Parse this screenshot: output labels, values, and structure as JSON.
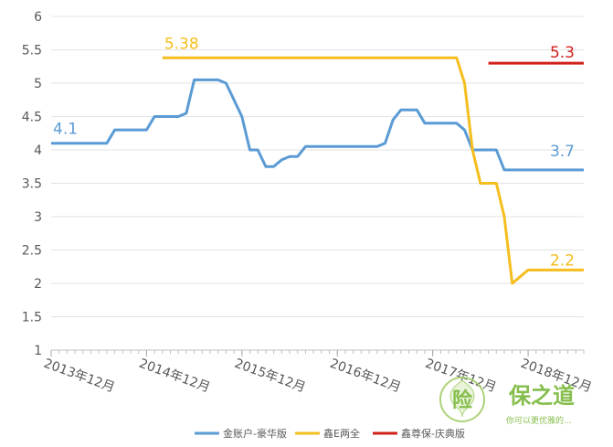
{
  "chart_data": {
    "type": "line",
    "title": "",
    "xlabel": "",
    "ylabel": "",
    "ylim": [
      1,
      6
    ],
    "yticks": [
      1,
      1.5,
      2,
      2.5,
      3,
      3.5,
      4,
      4.5,
      5,
      5.5,
      6
    ],
    "ytick_labels": [
      "1",
      "1.5",
      "2",
      "2.5",
      "3",
      "3.5",
      "4",
      "4.5",
      "5",
      "5.5",
      "6"
    ],
    "xlim": [
      "2013-12",
      "2019-07"
    ],
    "xticks": [
      "2013-12",
      "2014-12",
      "2015-12",
      "2016-12",
      "2017-12",
      "2018-12"
    ],
    "xtick_labels": [
      "2013年12月",
      "2014年12月",
      "2015年12月",
      "2016年12月",
      "2017年12月",
      "2018年12月"
    ],
    "grid": "horizontal",
    "legend_position": "bottom",
    "series": [
      {
        "name": "金账户-豪华版",
        "color": "#5b9bd5",
        "points": [
          [
            "2013-12",
            4.1
          ],
          [
            "2014-07",
            4.1
          ],
          [
            "2014-08",
            4.3
          ],
          [
            "2014-12",
            4.3
          ],
          [
            "2015-01",
            4.5
          ],
          [
            "2015-04",
            4.5
          ],
          [
            "2015-05",
            4.55
          ],
          [
            "2015-06",
            5.05
          ],
          [
            "2015-09",
            5.05
          ],
          [
            "2015-10",
            5.0
          ],
          [
            "2015-12",
            4.5
          ],
          [
            "2016-01",
            4.0
          ],
          [
            "2016-02",
            4.0
          ],
          [
            "2016-03",
            3.75
          ],
          [
            "2016-04",
            3.75
          ],
          [
            "2016-05",
            3.85
          ],
          [
            "2016-06",
            3.9
          ],
          [
            "2016-07",
            3.9
          ],
          [
            "2016-08",
            4.05
          ],
          [
            "2017-05",
            4.05
          ],
          [
            "2017-06",
            4.1
          ],
          [
            "2017-07",
            4.45
          ],
          [
            "2017-08",
            4.6
          ],
          [
            "2017-10",
            4.6
          ],
          [
            "2017-11",
            4.4
          ],
          [
            "2018-03",
            4.4
          ],
          [
            "2018-04",
            4.3
          ],
          [
            "2018-05",
            4.0
          ],
          [
            "2018-08",
            4.0
          ],
          [
            "2018-09",
            3.7
          ],
          [
            "2019-07",
            3.7
          ]
        ]
      },
      {
        "name": "鑫E两全",
        "color": "#f5be1e",
        "points": [
          [
            "2015-02",
            5.38
          ],
          [
            "2018-03",
            5.38
          ],
          [
            "2018-04",
            5.0
          ],
          [
            "2018-05",
            4.0
          ],
          [
            "2018-06",
            3.5
          ],
          [
            "2018-08",
            3.5
          ],
          [
            "2018-09",
            3.0
          ],
          [
            "2018-10",
            2.0
          ],
          [
            "2018-11",
            2.1
          ],
          [
            "2018-12",
            2.2
          ],
          [
            "2019-07",
            2.2
          ]
        ]
      },
      {
        "name": "鑫尊保-庆典版",
        "color": "#d0201a",
        "points": [
          [
            "2018-07",
            5.3
          ],
          [
            "2019-07",
            5.3
          ]
        ]
      }
    ],
    "annotations": [
      {
        "text": "4.1",
        "series": "金账户-豪华版"
      },
      {
        "text": "3.7",
        "series": "金账户-豪华版"
      },
      {
        "text": "5.38",
        "series": "鑫E两全"
      },
      {
        "text": "2.2",
        "series": "鑫E两全"
      },
      {
        "text": "5.3",
        "series": "鑫尊保-庆典版"
      }
    ]
  },
  "watermark": {
    "seal_char": "险",
    "brand": "保之道",
    "slogan": "你可以更优雅的..."
  }
}
